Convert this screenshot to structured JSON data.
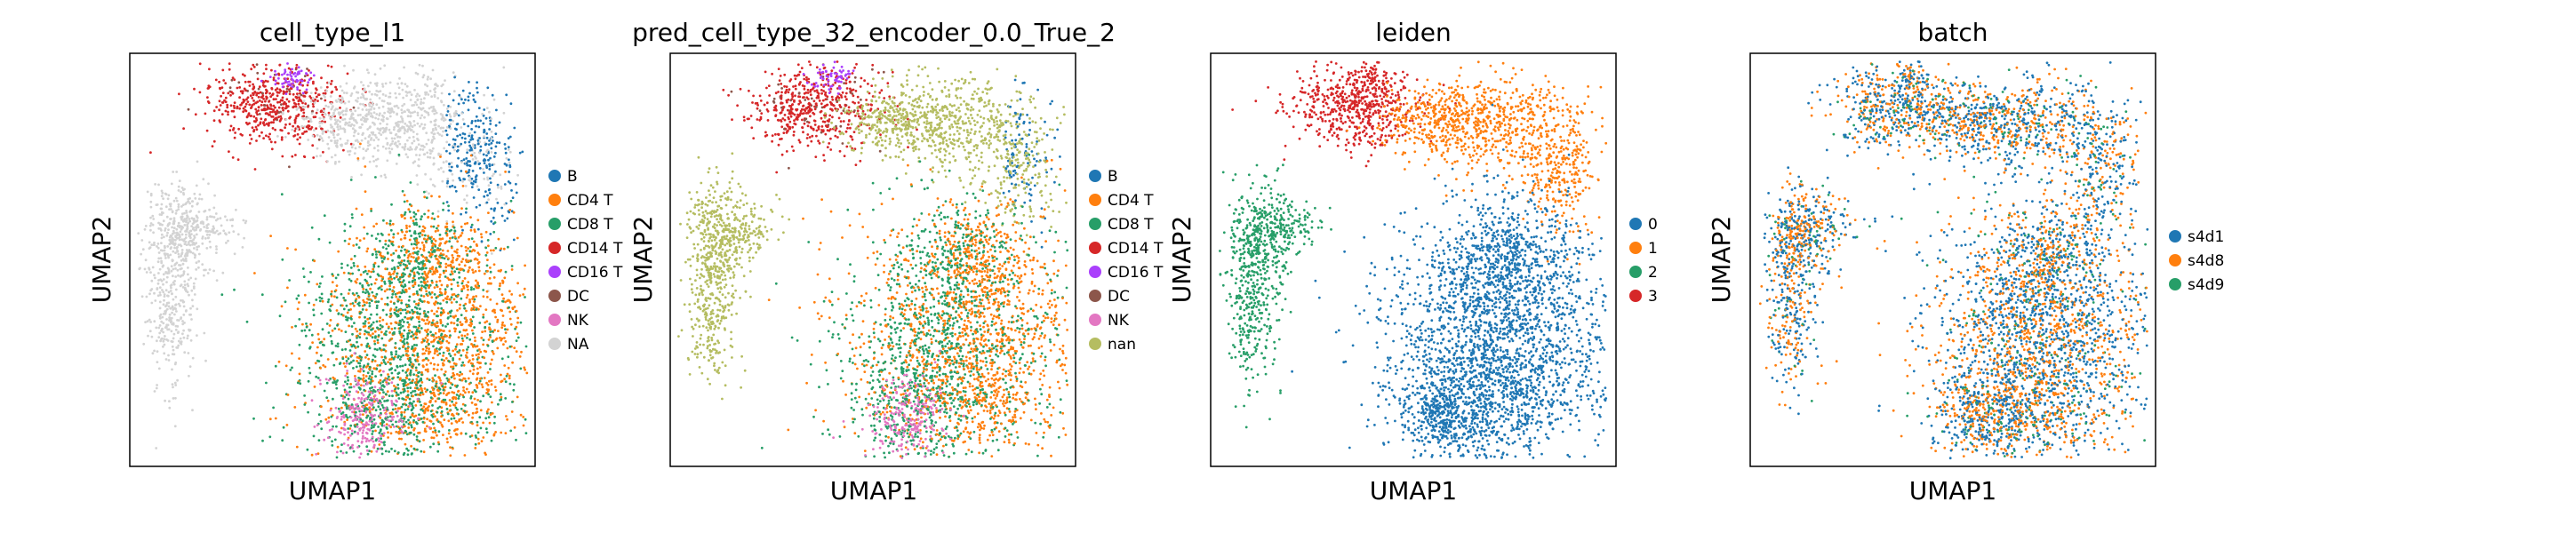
{
  "chart_data": [
    {
      "type": "scatter",
      "title": "cell_type_l1",
      "xlabel": "UMAP1",
      "ylabel": "UMAP2",
      "xticks": [],
      "yticks": [],
      "grid": false,
      "legend_position": "right",
      "series": [
        {
          "name": "B",
          "color": "#1f77b4"
        },
        {
          "name": "CD4 T",
          "color": "#ff7f0e"
        },
        {
          "name": "CD8 T",
          "color": "#279e68"
        },
        {
          "name": "CD14 T",
          "color": "#d62728"
        },
        {
          "name": "CD16 T",
          "color": "#aa40fc"
        },
        {
          "name": "DC",
          "color": "#8c564b"
        },
        {
          "name": "NK",
          "color": "#e377c2"
        },
        {
          "name": "NA",
          "color": "#d3d3d3"
        }
      ]
    },
    {
      "type": "scatter",
      "title": "pred_cell_type_32_encoder_0.0_True_2",
      "xlabel": "UMAP1",
      "ylabel": "UMAP2",
      "xticks": [],
      "yticks": [],
      "grid": false,
      "legend_position": "right",
      "series": [
        {
          "name": "B",
          "color": "#1f77b4"
        },
        {
          "name": "CD4 T",
          "color": "#ff7f0e"
        },
        {
          "name": "CD8 T",
          "color": "#279e68"
        },
        {
          "name": "CD14 T",
          "color": "#d62728"
        },
        {
          "name": "CD16 T",
          "color": "#aa40fc"
        },
        {
          "name": "DC",
          "color": "#8c564b"
        },
        {
          "name": "NK",
          "color": "#e377c2"
        },
        {
          "name": "nan",
          "color": "#b5bd61"
        }
      ]
    },
    {
      "type": "scatter",
      "title": "leiden",
      "xlabel": "UMAP1",
      "ylabel": "UMAP2",
      "xticks": [],
      "yticks": [],
      "grid": false,
      "legend_position": "right",
      "series": [
        {
          "name": "0",
          "color": "#1f77b4"
        },
        {
          "name": "1",
          "color": "#ff7f0e"
        },
        {
          "name": "2",
          "color": "#279e68"
        },
        {
          "name": "3",
          "color": "#d62728"
        }
      ]
    },
    {
      "type": "scatter",
      "title": "batch",
      "xlabel": "UMAP1",
      "ylabel": "UMAP2",
      "xticks": [],
      "yticks": [],
      "grid": false,
      "legend_position": "right",
      "series": [
        {
          "name": "s4d1",
          "color": "#1f77b4"
        },
        {
          "name": "s4d8",
          "color": "#ff7f0e"
        },
        {
          "name": "s4d9",
          "color": "#279e68"
        }
      ]
    }
  ]
}
